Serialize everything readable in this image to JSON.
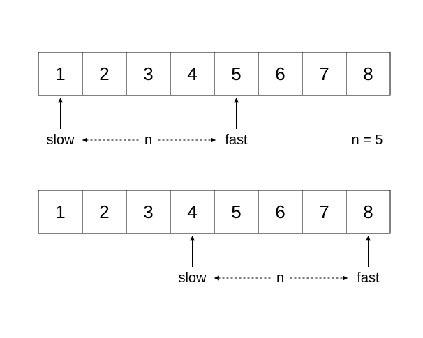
{
  "rows": [
    {
      "cells": [
        "1",
        "2",
        "3",
        "4",
        "5",
        "6",
        "7",
        "8"
      ],
      "slow_label": "slow",
      "fast_label": "fast",
      "gap_label": "n",
      "slow_index": 0,
      "fast_index": 4,
      "note": "n = 5"
    },
    {
      "cells": [
        "1",
        "2",
        "3",
        "4",
        "5",
        "6",
        "7",
        "8"
      ],
      "slow_label": "slow",
      "fast_label": "fast",
      "gap_label": "n",
      "slow_index": 3,
      "fast_index": 7,
      "note": ""
    }
  ],
  "colors": {
    "stroke": "#000000",
    "background": "#ffffff"
  }
}
